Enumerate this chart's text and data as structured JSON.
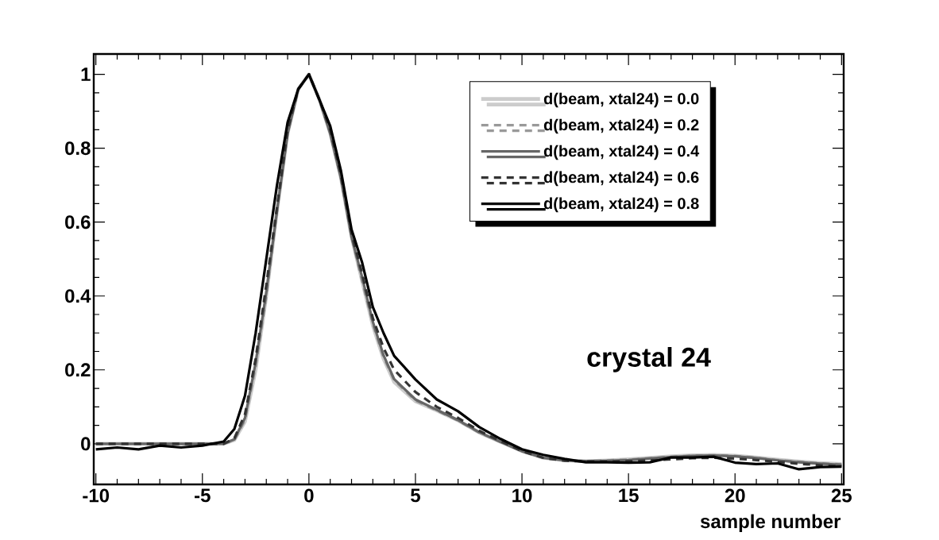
{
  "chart_data": {
    "type": "line",
    "xlabel": "sample number",
    "x": [
      -10,
      -9,
      -8,
      -7,
      -6,
      -5,
      -4,
      -3.5,
      -3,
      -2.5,
      -2,
      -1.5,
      -1,
      -0.5,
      0,
      0.5,
      1,
      1.5,
      2,
      2.5,
      3,
      3.5,
      4,
      5,
      6,
      7,
      8,
      9,
      10,
      11,
      12,
      13,
      14,
      15,
      16,
      17,
      18,
      19,
      20,
      21,
      22,
      23,
      24,
      25
    ],
    "series": [
      {
        "name": "d(beam, xtal24) = 0.0",
        "color": "#cccccc",
        "line_style": "solid",
        "values": [
          0,
          0,
          0,
          0,
          0,
          0,
          0,
          0.01,
          0.06,
          0.2,
          0.4,
          0.63,
          0.84,
          0.96,
          1.0,
          0.93,
          0.84,
          0.72,
          0.56,
          0.44,
          0.32,
          0.23,
          0.167,
          0.115,
          0.09,
          0.063,
          0.03,
          0.005,
          -0.02,
          -0.038,
          -0.045,
          -0.047,
          -0.045,
          -0.042,
          -0.038,
          -0.034,
          -0.031,
          -0.03,
          -0.032,
          -0.037,
          -0.043,
          -0.048,
          -0.052,
          -0.055
        ]
      },
      {
        "name": "d(beam, xtal24) = 0.2",
        "color": "#999999",
        "line_style": "dashed",
        "values": [
          0,
          0,
          0,
          0,
          0,
          0,
          0,
          0.01,
          0.065,
          0.21,
          0.4,
          0.63,
          0.84,
          0.96,
          1.0,
          0.93,
          0.84,
          0.72,
          0.56,
          0.44,
          0.325,
          0.235,
          0.172,
          0.117,
          0.09,
          0.063,
          0.03,
          0.005,
          -0.02,
          -0.038,
          -0.045,
          -0.047,
          -0.045,
          -0.043,
          -0.039,
          -0.035,
          -0.032,
          -0.031,
          -0.033,
          -0.038,
          -0.044,
          -0.049,
          -0.053,
          -0.056
        ]
      },
      {
        "name": "d(beam, xtal24) = 0.4",
        "color": "#666666",
        "line_style": "solid",
        "values": [
          0,
          0,
          0,
          0,
          0,
          0,
          0,
          0.012,
          0.07,
          0.22,
          0.41,
          0.63,
          0.84,
          0.96,
          1.0,
          0.93,
          0.84,
          0.72,
          0.56,
          0.45,
          0.33,
          0.24,
          0.175,
          0.12,
          0.092,
          0.064,
          0.031,
          0.005,
          -0.02,
          -0.038,
          -0.045,
          -0.047,
          -0.046,
          -0.044,
          -0.04,
          -0.036,
          -0.033,
          -0.032,
          -0.034,
          -0.039,
          -0.045,
          -0.05,
          -0.054,
          -0.057
        ]
      },
      {
        "name": "d(beam, xtal24) = 0.6",
        "color": "#333333",
        "line_style": "dashed",
        "values": [
          0,
          0,
          0,
          0,
          0,
          0,
          0,
          0.015,
          0.08,
          0.23,
          0.43,
          0.64,
          0.85,
          0.96,
          1.0,
          0.93,
          0.85,
          0.73,
          0.57,
          0.46,
          0.34,
          0.26,
          0.2,
          0.14,
          0.1,
          0.07,
          0.035,
          0.007,
          -0.02,
          -0.038,
          -0.046,
          -0.048,
          -0.048,
          -0.047,
          -0.045,
          -0.042,
          -0.039,
          -0.038,
          -0.04,
          -0.044,
          -0.049,
          -0.054,
          -0.058,
          -0.061
        ]
      },
      {
        "name": "d(beam, xtal24) = 0.8",
        "color": "#000000",
        "line_style": "solid",
        "values": [
          -0.015,
          -0.01,
          -0.015,
          -0.005,
          -0.01,
          -0.005,
          0.006,
          0.04,
          0.13,
          0.3,
          0.5,
          0.7,
          0.87,
          0.96,
          1.0,
          0.93,
          0.86,
          0.74,
          0.58,
          0.49,
          0.37,
          0.3,
          0.238,
          0.174,
          0.12,
          0.088,
          0.045,
          0.013,
          -0.015,
          -0.03,
          -0.041,
          -0.05,
          -0.05,
          -0.051,
          -0.05,
          -0.037,
          -0.037,
          -0.035,
          -0.051,
          -0.055,
          -0.053,
          -0.069,
          -0.063,
          -0.062
        ]
      }
    ],
    "xlim": [
      -10.1,
      25.1
    ],
    "ylim": [
      -0.11,
      1.055
    ],
    "xticks": [
      -10,
      -5,
      0,
      5,
      10,
      15,
      20,
      25
    ],
    "yticks": [
      0,
      0.2,
      0.4,
      0.6,
      0.8,
      1
    ],
    "legend": "top right",
    "grid": false,
    "marker": "none",
    "annotations": [
      "crystal 24"
    ]
  }
}
